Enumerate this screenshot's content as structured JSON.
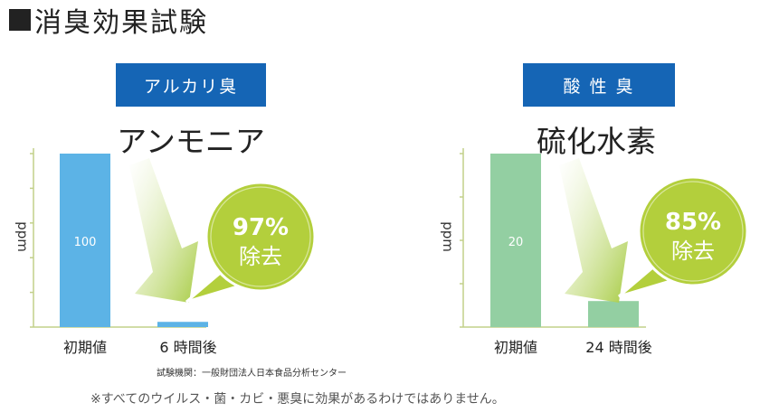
{
  "heading": {
    "title": "消臭効果試験"
  },
  "footer": {
    "source": "試験機関：一般財団法人日本食品分析センター",
    "note": "※すべてのウイルス・菌・カビ・悪臭に効果があるわけではありません。"
  },
  "colors": {
    "badge": "#1565b5",
    "bar_blue": "#5cb3e6",
    "bar_green": "#93cfa2",
    "bubble": "#b3cf3c",
    "axis": "#c2d08a"
  },
  "chart_data": [
    {
      "type": "bar",
      "badge": "アルカリ臭",
      "title": "アンモニア",
      "ylabel": "ppm",
      "categories": [
        "初期値",
        "6 時間後"
      ],
      "values": [
        100,
        3
      ],
      "data_labels": [
        "100",
        ""
      ],
      "ylim": [
        0,
        100
      ],
      "callout": {
        "percent": "97%",
        "text": "除去"
      },
      "series_color": "#5cb3e6"
    },
    {
      "type": "bar",
      "badge": "酸 性 臭",
      "title": "硫化水素",
      "ylabel": "ppm",
      "categories": [
        "初期値",
        "24 時間後"
      ],
      "values": [
        20,
        3
      ],
      "data_labels": [
        "20",
        ""
      ],
      "ylim": [
        0,
        20
      ],
      "callout": {
        "percent": "85%",
        "text": "除去"
      },
      "series_color": "#93cfa2"
    }
  ]
}
